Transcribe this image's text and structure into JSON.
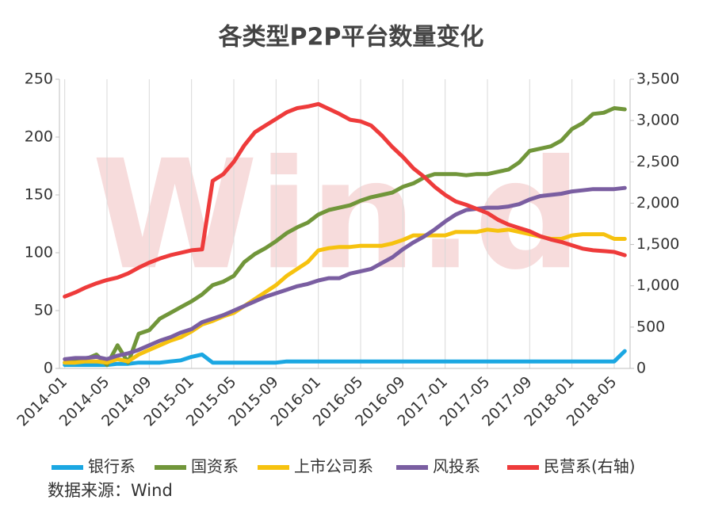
{
  "chart_data": {
    "type": "line",
    "title": "各类型P2P平台数量变化",
    "watermark": "Win.d",
    "source": "数据来源：Wind",
    "categories": [
      "2014-01",
      null,
      null,
      null,
      "2014-05",
      null,
      null,
      null,
      "2014-09",
      null,
      null,
      null,
      "2015-01",
      null,
      null,
      null,
      "2015-05",
      null,
      null,
      null,
      "2015-09",
      null,
      null,
      null,
      "2016-01",
      null,
      null,
      null,
      "2016-05",
      null,
      null,
      null,
      "2016-09",
      null,
      null,
      null,
      "2017-01",
      null,
      null,
      null,
      "2017-05",
      null,
      null,
      null,
      "2017-09",
      null,
      null,
      null,
      "2018-01",
      null,
      null,
      null,
      "2018-05",
      null
    ],
    "ylim": [
      0,
      250
    ],
    "yticks": [
      0,
      50,
      100,
      150,
      200,
      250
    ],
    "y2lim": [
      0,
      3500
    ],
    "y2ticks": [
      0,
      {
        "value": 500,
        "label": "500"
      },
      {
        "value": 1000,
        "label": "1,000"
      },
      {
        "value": 1500,
        "label": "1,500"
      },
      {
        "value": 2000,
        "label": "2,000"
      },
      {
        "value": 2500,
        "label": "2,500"
      },
      {
        "value": 3000,
        "label": "3,000"
      },
      {
        "value": 3500,
        "label": "3,500"
      }
    ],
    "grid": true,
    "legend": "bottom",
    "series": [
      {
        "name": "银行系",
        "color": "#1ba7e2",
        "values": [
          3,
          3,
          3,
          3,
          3,
          4,
          4,
          5,
          5,
          5,
          6,
          7,
          10,
          12,
          5,
          5,
          5,
          5,
          5,
          5,
          5,
          6,
          6,
          6,
          6,
          6,
          6,
          6,
          6,
          6,
          6,
          6,
          6,
          6,
          6,
          6,
          6,
          6,
          6,
          6,
          6,
          6,
          6,
          6,
          6,
          6,
          6,
          6,
          6,
          6,
          6,
          6,
          6,
          15
        ]
      },
      {
        "name": "国资系",
        "color": "#71963a",
        "values": [
          5,
          6,
          8,
          12,
          3,
          20,
          5,
          30,
          33,
          43,
          48,
          53,
          58,
          64,
          72,
          75,
          80,
          92,
          99,
          104,
          110,
          117,
          122,
          126,
          133,
          137,
          139,
          141,
          145,
          148,
          150,
          152,
          157,
          160,
          165,
          168,
          168,
          168,
          167,
          168,
          168,
          170,
          172,
          178,
          188,
          190,
          192,
          197,
          207,
          212,
          220,
          221,
          225,
          224
        ]
      },
      {
        "name": "上市公司系",
        "color": "#f6c20f",
        "values": [
          5,
          5,
          6,
          6,
          5,
          8,
          6,
          12,
          16,
          20,
          24,
          27,
          32,
          38,
          41,
          45,
          48,
          54,
          60,
          66,
          72,
          80,
          86,
          92,
          102,
          104,
          105,
          105,
          106,
          106,
          106,
          108,
          111,
          115,
          115,
          115,
          115,
          118,
          118,
          118,
          120,
          119,
          120,
          118,
          116,
          114,
          112,
          112,
          115,
          116,
          116,
          116,
          112,
          112
        ]
      },
      {
        "name": "风投系",
        "color": "#7a5ea1",
        "values": [
          8,
          9,
          9,
          10,
          8,
          11,
          13,
          16,
          20,
          24,
          27,
          31,
          34,
          40,
          43,
          46,
          50,
          54,
          58,
          62,
          65,
          68,
          71,
          73,
          76,
          78,
          78,
          82,
          84,
          86,
          91,
          96,
          103,
          109,
          114,
          120,
          127,
          133,
          137,
          138,
          139,
          139,
          140,
          142,
          146,
          149,
          150,
          151,
          153,
          154,
          155,
          155,
          155,
          156
        ]
      },
      {
        "name": "民营系(右轴)",
        "color": "#ee3b3b",
        "axis": "y2",
        "values": [
          870,
          920,
          980,
          1030,
          1070,
          1100,
          1150,
          1220,
          1280,
          1330,
          1370,
          1400,
          1430,
          1440,
          2270,
          2350,
          2500,
          2700,
          2860,
          2940,
          3020,
          3100,
          3150,
          3170,
          3200,
          3140,
          3080,
          3010,
          2990,
          2940,
          2820,
          2680,
          2560,
          2420,
          2320,
          2200,
          2100,
          2020,
          1980,
          1930,
          1880,
          1800,
          1740,
          1700,
          1660,
          1600,
          1560,
          1530,
          1490,
          1450,
          1430,
          1420,
          1410,
          1370
        ]
      }
    ]
  }
}
